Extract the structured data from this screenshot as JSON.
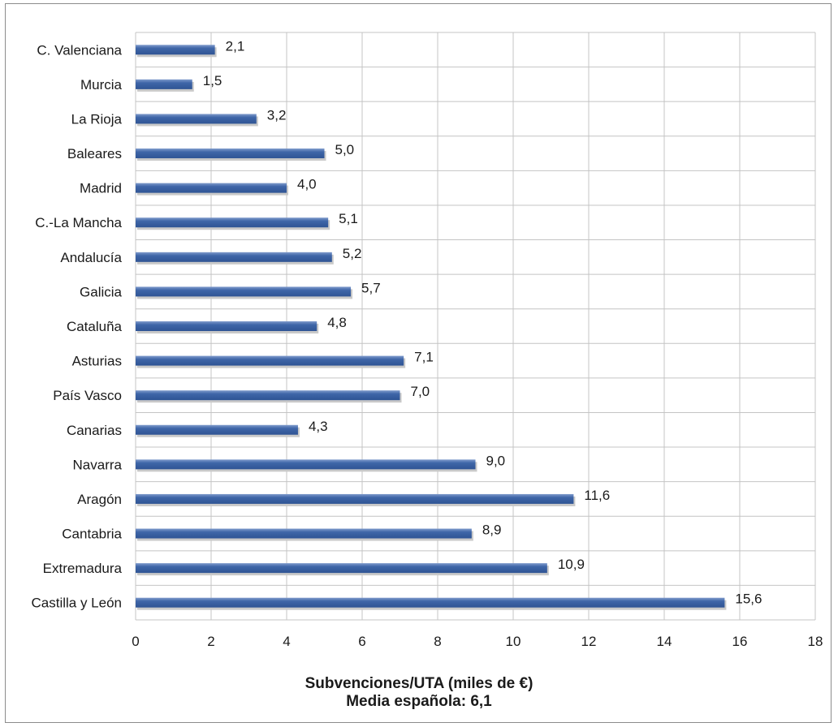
{
  "chart_data": {
    "type": "bar",
    "orientation": "horizontal",
    "categories": [
      "C. Valenciana",
      "Murcia",
      "La Rioja",
      "Baleares",
      "Madrid",
      "C.-La Mancha",
      "Andalucía",
      "Galicia",
      "Cataluña",
      "Asturias",
      "País Vasco",
      "Canarias",
      "Navarra",
      "Aragón",
      "Cantabria",
      "Extremadura",
      "Castilla y León"
    ],
    "values": [
      2.1,
      1.5,
      3.2,
      5.0,
      4.0,
      5.1,
      5.2,
      5.7,
      4.8,
      7.1,
      7.0,
      4.3,
      9.0,
      11.6,
      8.9,
      10.9,
      15.6
    ],
    "value_labels": [
      "2,1",
      "1,5",
      "3,2",
      "5,0",
      "4,0",
      "5,1",
      "5,2",
      "5,7",
      "4,8",
      "7,1",
      "7,0",
      "4,3",
      "9,0",
      "11,6",
      "8,9",
      "10,9",
      "15,6"
    ],
    "xlim": [
      0,
      18
    ],
    "x_ticks": [
      0,
      2,
      4,
      6,
      8,
      10,
      12,
      14,
      16,
      18
    ],
    "xlabel": "Subvenciones/UTA (miles de €)",
    "subtitle": "Media española: 6,1",
    "grid": true,
    "bar_color": "#3f66a8",
    "bar_highlight_color": "#7f9bcc",
    "bar_shadow_color": "#c9c9c9",
    "grid_color": "#c4c4c4"
  }
}
